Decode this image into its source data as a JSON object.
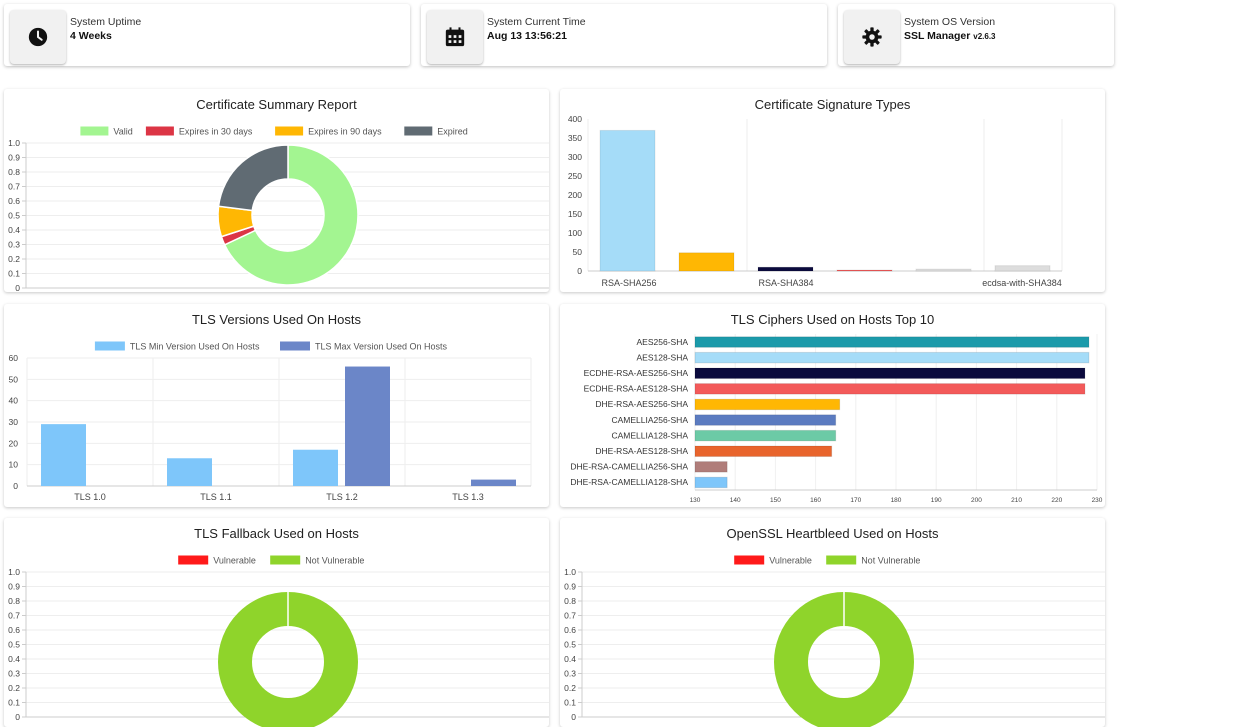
{
  "stats": [
    {
      "label": "System Uptime",
      "value": "4 Weeks",
      "suffix": "",
      "icon": "clock-icon"
    },
    {
      "label": "System Current Time",
      "value": "Aug 13 13:56:21",
      "suffix": "",
      "icon": "calendar-icon"
    },
    {
      "label": "System OS Version",
      "value": "SSL Manager",
      "suffix": "v2.6.3",
      "icon": "gear-icon"
    }
  ],
  "cert_summary": {
    "title": "Certificate Summary Report",
    "legend": [
      "Valid",
      "Expires in 30 days",
      "Expires in 90 days",
      "Expired"
    ],
    "colors": [
      "#a3f591",
      "#dc3545",
      "#ffb703",
      "#606b73"
    ],
    "values": [
      68,
      2,
      7,
      23
    ],
    "axis_ticks": [
      "1.0",
      "0.9",
      "0.8",
      "0.7",
      "0.6",
      "0.5",
      "0.4",
      "0.3",
      "0.2",
      "0.1",
      "0"
    ]
  },
  "sig_types": {
    "title": "Certificate Signature Types",
    "y_ticks": [
      "400",
      "350",
      "300",
      "250",
      "200",
      "150",
      "100",
      "50",
      "0"
    ],
    "ymax": 400,
    "x_labels": [
      "RSA-SHA256",
      "RSA-SHA384",
      "ecdsa-with-SHA384"
    ],
    "values": [
      370,
      48,
      10,
      2,
      5,
      14
    ],
    "colors": [
      "#a5dcf8",
      "#ffb703",
      "#0b0a3d",
      "#f35a5a",
      "#dddddd",
      "#dddddd"
    ]
  },
  "tls_versions": {
    "title": "TLS Versions Used On Hosts",
    "legend": [
      "TLS Min Version Used On Hosts",
      "TLS Max Version Used On Hosts"
    ],
    "colors": [
      "#7ec6fa",
      "#6b86c8"
    ],
    "categories": [
      "TLS 1.0",
      "TLS 1.1",
      "TLS 1.2",
      "TLS 1.3"
    ],
    "min_values": [
      29,
      13,
      17,
      0
    ],
    "max_values": [
      0,
      0,
      56,
      3
    ],
    "y_ticks": [
      "60",
      "50",
      "40",
      "30",
      "20",
      "10",
      "0"
    ],
    "ymax": 60
  },
  "ciphers": {
    "title": "TLS Ciphers Used on Hosts Top 10",
    "labels": [
      "AES256-SHA",
      "AES128-SHA",
      "ECDHE-RSA-AES256-SHA",
      "ECDHE-RSA-AES128-SHA",
      "DHE-RSA-AES256-SHA",
      "CAMELLIA256-SHA",
      "CAMELLIA128-SHA",
      "DHE-RSA-AES128-SHA",
      "DHE-RSA-CAMELLIA256-SHA",
      "DHE-RSA-CAMELLIA128-SHA"
    ],
    "values": [
      228,
      228,
      227,
      227,
      166,
      165,
      165,
      164,
      138,
      138
    ],
    "colors": [
      "#1b9aaa",
      "#a5dcf8",
      "#0b0a3d",
      "#f35a5a",
      "#ffb703",
      "#5b7bc0",
      "#6ccaa6",
      "#e8642c",
      "#b07d7a",
      "#7ec6fa"
    ],
    "x_ticks": [
      "130",
      "140",
      "150",
      "160",
      "170",
      "180",
      "190",
      "200",
      "210",
      "220",
      "230"
    ],
    "xmin": 130,
    "xmax": 230
  },
  "fallback": {
    "title": "TLS Fallback Used on Hosts",
    "legend": [
      "Vulnerable",
      "Not Vulnerable"
    ],
    "colors": [
      "#ff1a1a",
      "#8fd42b"
    ],
    "values": [
      0,
      100
    ],
    "axis_ticks": [
      "1.0",
      "0.9",
      "0.8",
      "0.7",
      "0.6",
      "0.5",
      "0.4",
      "0.3",
      "0.2",
      "0.1",
      "0"
    ]
  },
  "heartbleed": {
    "title": "OpenSSL Heartbleed Used on Hosts",
    "legend": [
      "Vulnerable",
      "Not Vulnerable"
    ],
    "colors": [
      "#ff1a1a",
      "#8fd42b"
    ],
    "values": [
      0,
      100
    ],
    "axis_ticks": [
      "1.0",
      "0.9",
      "0.8",
      "0.7",
      "0.6",
      "0.5",
      "0.4",
      "0.3",
      "0.2",
      "0.1",
      "0"
    ]
  }
}
